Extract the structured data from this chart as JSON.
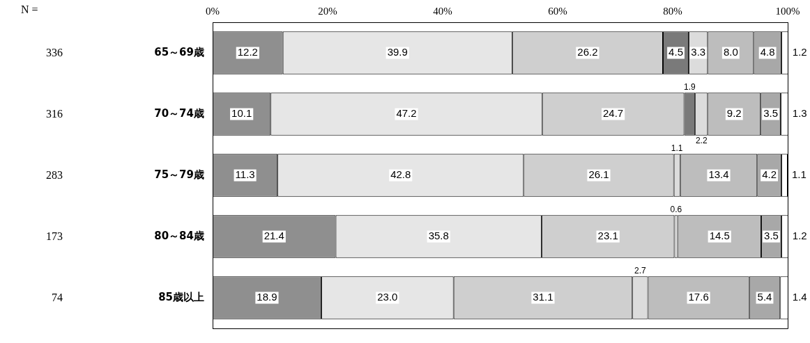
{
  "chart_data": {
    "type": "bar",
    "orientation": "horizontal",
    "stacked": true,
    "grid": false,
    "legend": false,
    "categories": [
      "65～69歳",
      "70～74歳",
      "75～79歳",
      "80～84歳",
      "85歳以上"
    ],
    "xlim": [
      0,
      100
    ],
    "xticks": [
      {
        "value": 0,
        "label": "0%"
      },
      {
        "value": 20,
        "label": "20%"
      },
      {
        "value": 40,
        "label": "40%"
      },
      {
        "value": 60,
        "label": "60%"
      },
      {
        "value": 80,
        "label": "80%"
      },
      {
        "value": 100,
        "label": "100%"
      }
    ],
    "annotations": [
      "N =",
      "336",
      "316",
      "283",
      "173",
      "74"
    ],
    "series": [
      {
        "color": "#8f8f8f",
        "values": [
          12.2,
          10.1,
          11.3,
          21.4,
          18.9
        ],
        "value_labels": [
          "12.2",
          "10.1",
          "11.3",
          "21.4",
          "18.9"
        ]
      },
      {
        "color": "#e6e6e6",
        "values": [
          39.9,
          47.2,
          42.8,
          35.8,
          23.0
        ],
        "value_labels": [
          "39.9",
          "47.2",
          "42.8",
          "35.8",
          "23.0"
        ]
      },
      {
        "color": "#cfcfcf",
        "values": [
          26.2,
          24.7,
          26.1,
          23.1,
          31.1
        ],
        "value_labels": [
          "26.2",
          "24.7",
          "26.1",
          "23.1",
          "31.1"
        ]
      },
      {
        "color": "#7a7a7a",
        "values": [
          4.5,
          1.9,
          0,
          0,
          0
        ],
        "value_labels": [
          "4.5",
          "1.9",
          null,
          null,
          null
        ]
      },
      {
        "color": "#dcdcdc",
        "values": [
          3.3,
          2.2,
          1.1,
          0.6,
          2.7
        ],
        "value_labels": [
          "3.3",
          "2.2",
          "1.1",
          "0.6",
          "2.7"
        ]
      },
      {
        "color": "#bdbdbd",
        "values": [
          8.0,
          9.2,
          13.4,
          14.5,
          17.6
        ],
        "value_labels": [
          "8.0",
          "9.2",
          "13.4",
          "14.5",
          "17.6"
        ]
      },
      {
        "color": "#a8a8a8",
        "values": [
          4.8,
          3.5,
          4.2,
          3.5,
          5.4
        ],
        "value_labels": [
          "4.8",
          "3.5",
          "4.2",
          "3.5",
          "5.4"
        ]
      },
      {
        "color": "#ffffff",
        "values": [
          1.2,
          1.3,
          1.1,
          1.2,
          1.4
        ],
        "value_labels": [
          "1.2",
          "1.3",
          "1.1",
          "1.2",
          "1.4"
        ]
      }
    ]
  }
}
